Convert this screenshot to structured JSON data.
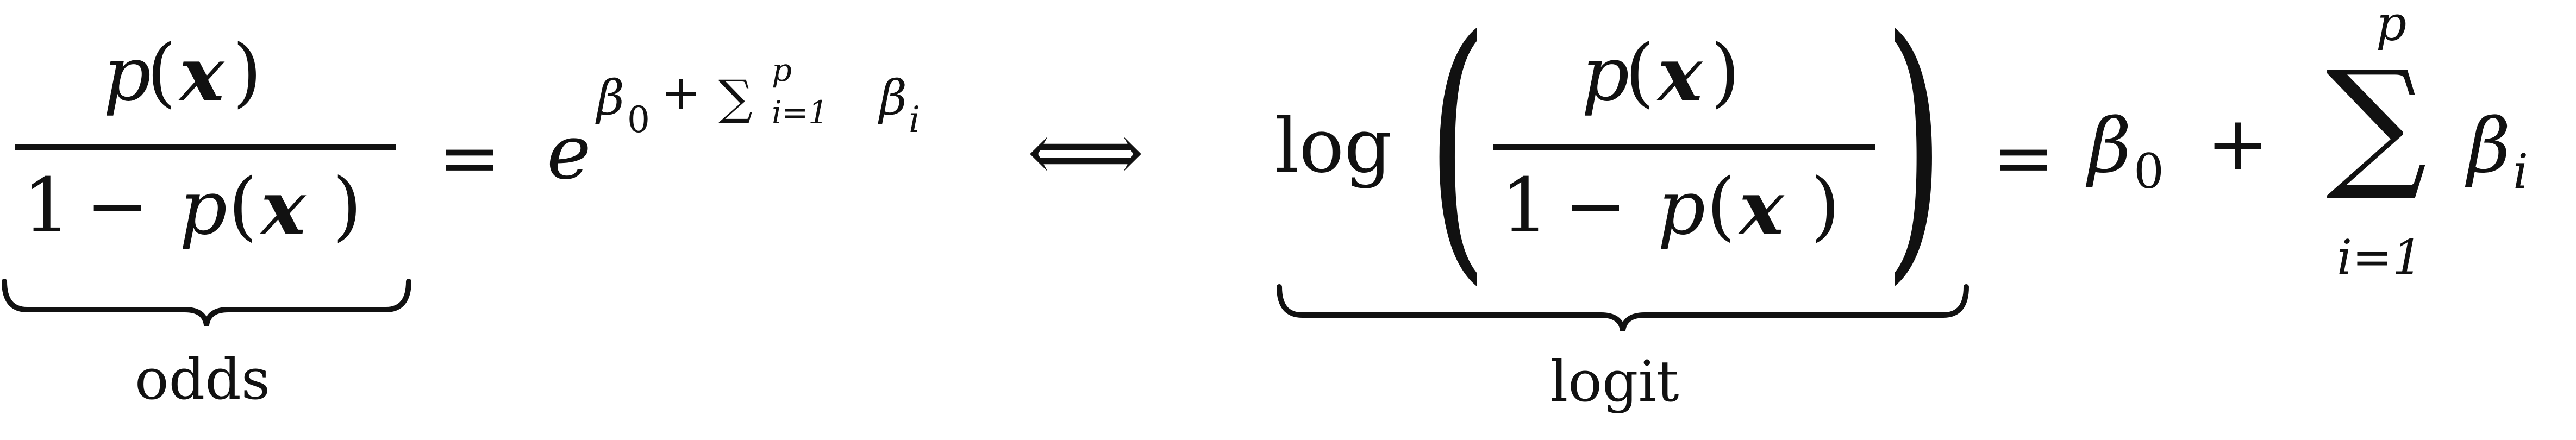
{
  "equation": {
    "lhs_fraction": {
      "numerator": {
        "p": "p",
        "open": "(",
        "x": "x",
        "close": ")"
      },
      "denominator": {
        "one": "1",
        "minus": "−",
        "p": "p",
        "open": "(",
        "x": "x",
        "close": ")"
      },
      "underbrace_label": "odds"
    },
    "equals_1": "=",
    "exp": {
      "base": "e",
      "beta": "β",
      "beta_sub": "0",
      "plus": "+",
      "sum": "∑",
      "sum_sup": "p",
      "sum_sub": "i=1",
      "beta_i": "β",
      "beta_i_sub": "i"
    },
    "iff": "⟺",
    "log_block": {
      "log": "log",
      "paren_open": "(",
      "paren_close": ")",
      "numerator": {
        "p": "p",
        "open": "(",
        "x": "x",
        "close": ")"
      },
      "denominator": {
        "one": "1",
        "minus": "−",
        "p": "p",
        "open": "(",
        "x": "x",
        "close": ")"
      },
      "underbrace_label": "logit"
    },
    "equals_2": "=",
    "rhs": {
      "beta": "β",
      "beta_sub": "0",
      "plus": "+",
      "sum": "∑",
      "sum_sup": "p",
      "sum_sub": "i=1",
      "beta_i": "β",
      "beta_i_sub": "i"
    }
  }
}
